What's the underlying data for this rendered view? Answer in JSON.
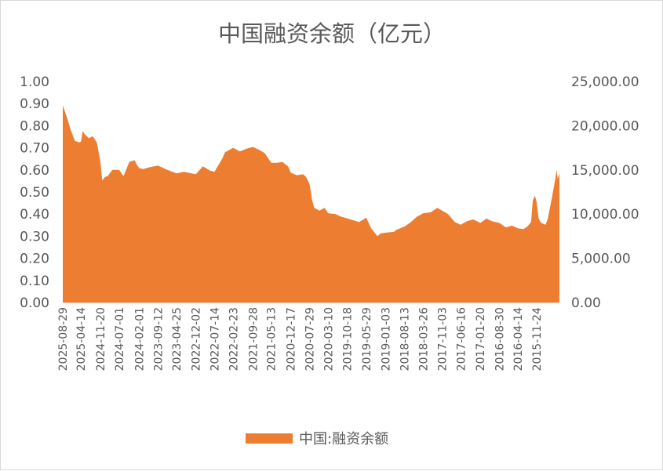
{
  "chart_data": {
    "type": "area",
    "title": "中国融资余额（亿元）",
    "x_order": "descending",
    "x_tick_labels": [
      "2025-08-29",
      "2025-04-14",
      "2024-11-20",
      "2024-07-01",
      "2024-02-01",
      "2023-09-12",
      "2023-04-25",
      "2022-12-02",
      "2022-07-14",
      "2022-02-23",
      "2021-09-28",
      "2021-05-13",
      "2020-12-17",
      "2020-07-29",
      "2020-03-10",
      "2019-10-18",
      "2019-05-29",
      "2019-01-03",
      "2018-08-13",
      "2018-03-26",
      "2017-11-03",
      "2017-06-16",
      "2017-01-20",
      "2016-08-30",
      "2016-04-14",
      "2015-11-24"
    ],
    "y_left": {
      "ticks": [
        "0.00",
        "0.10",
        "0.20",
        "0.30",
        "0.40",
        "0.50",
        "0.60",
        "0.70",
        "0.80",
        "0.90",
        "1.00"
      ],
      "range": [
        0,
        1
      ]
    },
    "y_right": {
      "ticks": [
        "0.00",
        "5,000.00",
        "10,000.00",
        "15,000.00",
        "20,000.00",
        "25,000.00"
      ],
      "range": [
        0,
        25000
      ]
    },
    "grid": false,
    "legend_position": "bottom",
    "series": [
      {
        "name": "中国:融资余额",
        "color": "#ED7D31",
        "axis": "right",
        "x": [
          "2025-08-29",
          "2025-07-30",
          "2025-06-30",
          "2025-05-30",
          "2025-04-30",
          "2025-04-14",
          "2025-04-01",
          "2025-03-14",
          "2025-02-14",
          "2025-01-14",
          "2024-12-16",
          "2024-11-20",
          "2024-11-05",
          "2024-10-15",
          "2024-09-24",
          "2024-09-10",
          "2024-08-20",
          "2024-07-01",
          "2024-05-29",
          "2024-04-15",
          "2024-03-06",
          "2024-02-19",
          "2024-02-01",
          "2024-01-02",
          "2023-11-15",
          "2023-09-12",
          "2023-07-04",
          "2023-04-25",
          "2023-03-01",
          "2022-12-02",
          "2022-10-10",
          "2022-08-15",
          "2022-07-14",
          "2022-05-16",
          "2022-04-26",
          "2022-02-23",
          "2022-01-04",
          "2021-11-15",
          "2021-09-28",
          "2021-08-16",
          "2021-07-01",
          "2021-05-13",
          "2021-04-01",
          "2021-02-19",
          "2021-01-06",
          "2020-12-17",
          "2020-11-02",
          "2020-09-15",
          "2020-08-24",
          "2020-07-29",
          "2020-07-10",
          "2020-06-23",
          "2020-05-15",
          "2020-04-07",
          "2020-03-10",
          "2020-01-14",
          "2019-12-02",
          "2019-10-18",
          "2019-09-02",
          "2019-07-22",
          "2019-05-29",
          "2019-04-22",
          "2019-03-05",
          "2019-02-12",
          "2019-01-03",
          "2018-10-30",
          "2018-10-18",
          "2018-08-13",
          "2018-06-27",
          "2018-05-14",
          "2018-03-26",
          "2018-01-29",
          "2017-12-11",
          "2017-11-03",
          "2017-09-20",
          "2017-08-01",
          "2017-06-16",
          "2017-05-02",
          "2017-03-14",
          "2017-01-20",
          "2016-12-05",
          "2016-10-25",
          "2016-08-30",
          "2016-07-12",
          "2016-05-26",
          "2016-04-14",
          "2016-03-01",
          "2016-02-01",
          "2016-01-05",
          "2015-12-23",
          "2015-12-07",
          "2015-11-24",
          "2015-11-09",
          "2015-10-20",
          "2015-09-17",
          "2015-08-31",
          "2015-07-30",
          "2015-07-08",
          "2015-06-26",
          "2015-06-18",
          "2015-06-05"
        ],
        "values": [
          22300,
          21000,
          19500,
          18300,
          18100,
          18200,
          19400,
          19000,
          18600,
          18800,
          18100,
          16000,
          13800,
          14200,
          14300,
          14600,
          15000,
          15000,
          14300,
          15900,
          16100,
          15600,
          15200,
          15100,
          15300,
          15500,
          15000,
          14600,
          14800,
          14500,
          15400,
          14900,
          14800,
          16300,
          17000,
          17500,
          17100,
          17400,
          17600,
          17300,
          16900,
          15800,
          15800,
          15900,
          15400,
          14700,
          14400,
          14500,
          14200,
          13400,
          11600,
          10700,
          10400,
          10700,
          10100,
          10000,
          9700,
          9500,
          9300,
          9100,
          9600,
          8400,
          7500,
          7800,
          7900,
          8000,
          8200,
          8600,
          9100,
          9700,
          10100,
          10200,
          10700,
          10400,
          10000,
          9100,
          8800,
          9200,
          9400,
          9000,
          9500,
          9200,
          9000,
          8500,
          8700,
          8400,
          8300,
          8600,
          9100,
          11500,
          12100,
          11400,
          9500,
          9000,
          8800,
          9500,
          12000,
          13800,
          15000,
          14000,
          14600
        ]
      }
    ]
  }
}
